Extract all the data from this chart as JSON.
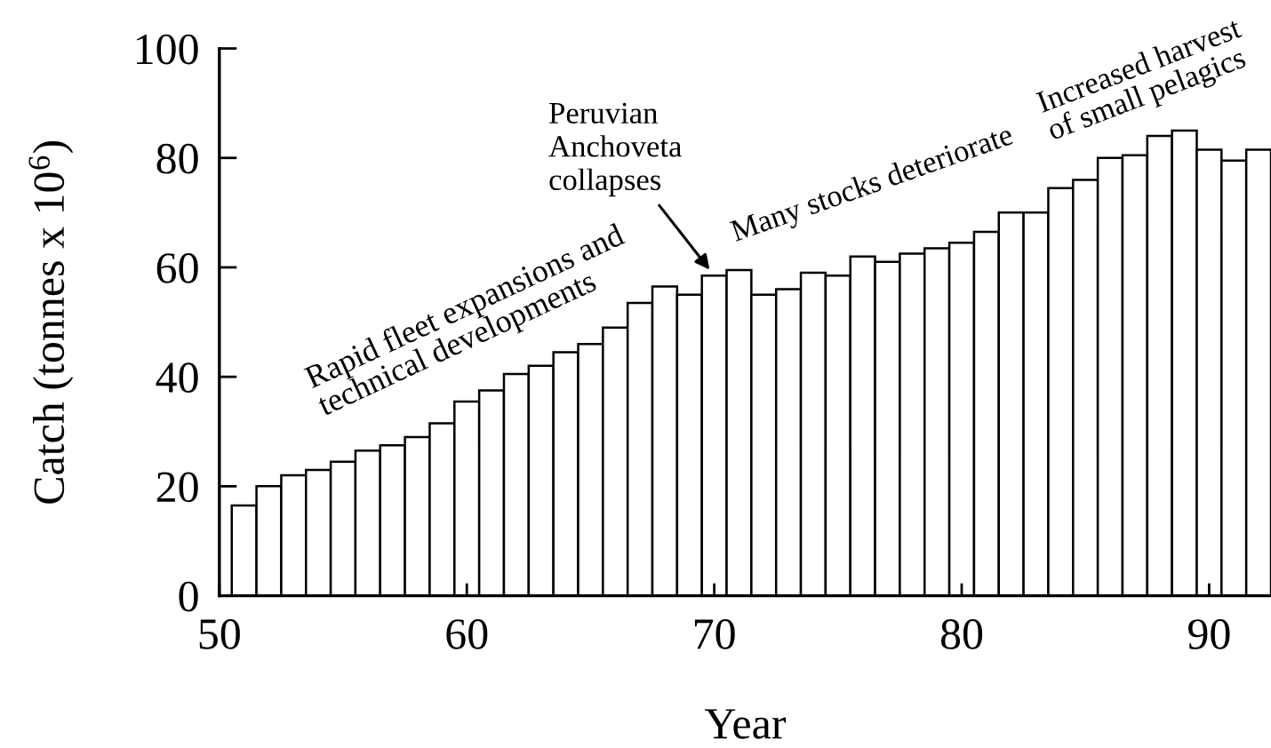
{
  "chart_data": {
    "type": "bar",
    "xlabel": "Year",
    "ylabel": "Catch (tonnes x 10$^{6}$)",
    "x": [
      51,
      52,
      53,
      54,
      55,
      56,
      57,
      58,
      59,
      60,
      61,
      62,
      63,
      64,
      65,
      66,
      67,
      68,
      69,
      70,
      71,
      72,
      73,
      74,
      75,
      76,
      77,
      78,
      79,
      80,
      81,
      82,
      83,
      84,
      85,
      86,
      87,
      88,
      89,
      90,
      91,
      92
    ],
    "values": [
      16.5,
      20,
      22,
      23,
      24.5,
      26.5,
      27.5,
      29,
      31.5,
      35.5,
      37.5,
      40.5,
      42,
      44.5,
      46,
      49,
      53.5,
      56.5,
      55,
      58.5,
      59.5,
      55,
      56,
      59,
      58.5,
      62,
      61,
      62.5,
      63.5,
      64.5,
      66.5,
      70,
      70,
      74.5,
      76,
      80,
      80.5,
      84,
      85,
      81.5,
      79.5,
      81.5
    ],
    "color": "#ffffff",
    "xlim": [
      50,
      92.5
    ],
    "xticks": [
      50,
      60,
      70,
      80,
      90
    ],
    "ylim": [
      0,
      100
    ],
    "yticks": [
      0,
      20,
      40,
      60,
      80,
      100
    ],
    "grid": false,
    "legend": false,
    "annotations": [
      "Rapid fleet expansions and\ntechnical developments",
      {
        "text": "Peruvian\nAnchoveta\ncollapses",
        "x": 70,
        "y": 58.5
      },
      "Many stocks deteriorate",
      "Increased harvest\nof small pelagics"
    ]
  }
}
